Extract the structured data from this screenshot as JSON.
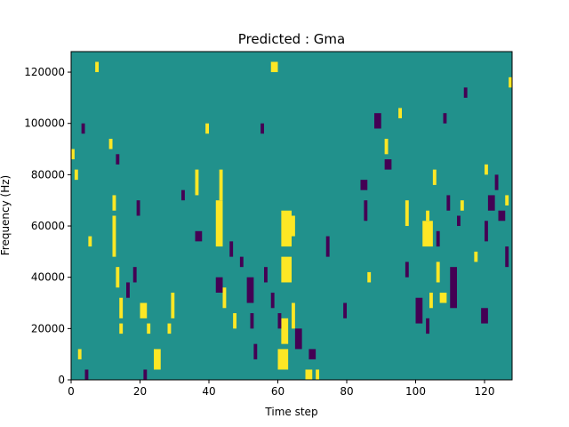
{
  "chart_data": {
    "type": "heatmap",
    "title": "Predicted : Gma",
    "xlabel": "Time step",
    "ylabel": "Frequency (Hz)",
    "xlim": [
      0,
      128
    ],
    "ylim": [
      0,
      128000
    ],
    "xticks": [
      0,
      20,
      40,
      60,
      80,
      100,
      120
    ],
    "yticks": [
      0,
      20000,
      40000,
      60000,
      80000,
      100000,
      120000
    ],
    "grid": false,
    "colormap": "viridis",
    "colors": {
      "background": "#21918c",
      "high": "#fde725",
      "low": "#440154"
    },
    "levels": {
      "background": 0,
      "high": 1,
      "low": -1
    },
    "cell_size": {
      "time_step": 1,
      "frequency_hz": 2000
    },
    "cells_high": [
      {
        "t": [
          0,
          1
        ],
        "f": [
          86000,
          90000
        ]
      },
      {
        "t": [
          1,
          2
        ],
        "f": [
          78000,
          82000
        ]
      },
      {
        "t": [
          2,
          3
        ],
        "f": [
          8000,
          12000
        ]
      },
      {
        "t": [
          5,
          6
        ],
        "f": [
          52000,
          56000
        ]
      },
      {
        "t": [
          7,
          8
        ],
        "f": [
          120000,
          124000
        ]
      },
      {
        "t": [
          11,
          12
        ],
        "f": [
          90000,
          94000
        ]
      },
      {
        "t": [
          12,
          13
        ],
        "f": [
          66000,
          72000
        ]
      },
      {
        "t": [
          12,
          13
        ],
        "f": [
          48000,
          64000
        ]
      },
      {
        "t": [
          13,
          14
        ],
        "f": [
          36000,
          44000
        ]
      },
      {
        "t": [
          14,
          15
        ],
        "f": [
          24000,
          32000
        ]
      },
      {
        "t": [
          14,
          15
        ],
        "f": [
          18000,
          22000
        ]
      },
      {
        "t": [
          20,
          22
        ],
        "f": [
          24000,
          30000
        ]
      },
      {
        "t": [
          22,
          23
        ],
        "f": [
          18000,
          22000
        ]
      },
      {
        "t": [
          24,
          26
        ],
        "f": [
          4000,
          12000
        ]
      },
      {
        "t": [
          28,
          29
        ],
        "f": [
          18000,
          22000
        ]
      },
      {
        "t": [
          29,
          30
        ],
        "f": [
          24000,
          34000
        ]
      },
      {
        "t": [
          36,
          37
        ],
        "f": [
          72000,
          82000
        ]
      },
      {
        "t": [
          39,
          40
        ],
        "f": [
          96000,
          100000
        ]
      },
      {
        "t": [
          42,
          44
        ],
        "f": [
          52000,
          70000
        ]
      },
      {
        "t": [
          43,
          44
        ],
        "f": [
          70000,
          82000
        ]
      },
      {
        "t": [
          44,
          45
        ],
        "f": [
          28000,
          36000
        ]
      },
      {
        "t": [
          47,
          48
        ],
        "f": [
          20000,
          26000
        ]
      },
      {
        "t": [
          58,
          60
        ],
        "f": [
          120000,
          124000
        ]
      },
      {
        "t": [
          60,
          63
        ],
        "f": [
          4000,
          12000
        ]
      },
      {
        "t": [
          61,
          63
        ],
        "f": [
          14000,
          24000
        ]
      },
      {
        "t": [
          61,
          64
        ],
        "f": [
          38000,
          48000
        ]
      },
      {
        "t": [
          61,
          64
        ],
        "f": [
          52000,
          66000
        ]
      },
      {
        "t": [
          63,
          65
        ],
        "f": [
          56000,
          64000
        ]
      },
      {
        "t": [
          64,
          65
        ],
        "f": [
          20000,
          30000
        ]
      },
      {
        "t": [
          68,
          70
        ],
        "f": [
          0,
          4000
        ]
      },
      {
        "t": [
          71,
          72
        ],
        "f": [
          0,
          4000
        ]
      },
      {
        "t": [
          86,
          87
        ],
        "f": [
          38000,
          42000
        ]
      },
      {
        "t": [
          91,
          92
        ],
        "f": [
          88000,
          94000
        ]
      },
      {
        "t": [
          95,
          96
        ],
        "f": [
          102000,
          106000
        ]
      },
      {
        "t": [
          97,
          98
        ],
        "f": [
          60000,
          70000
        ]
      },
      {
        "t": [
          102,
          105
        ],
        "f": [
          52000,
          62000
        ]
      },
      {
        "t": [
          103,
          104
        ],
        "f": [
          62000,
          66000
        ]
      },
      {
        "t": [
          104,
          105
        ],
        "f": [
          28000,
          34000
        ]
      },
      {
        "t": [
          105,
          106
        ],
        "f": [
          76000,
          82000
        ]
      },
      {
        "t": [
          106,
          107
        ],
        "f": [
          38000,
          46000
        ]
      },
      {
        "t": [
          107,
          109
        ],
        "f": [
          30000,
          34000
        ]
      },
      {
        "t": [
          113,
          114
        ],
        "f": [
          66000,
          70000
        ]
      },
      {
        "t": [
          117,
          118
        ],
        "f": [
          46000,
          50000
        ]
      },
      {
        "t": [
          120,
          121
        ],
        "f": [
          80000,
          84000
        ]
      },
      {
        "t": [
          126,
          127
        ],
        "f": [
          68000,
          72000
        ]
      },
      {
        "t": [
          127,
          128
        ],
        "f": [
          114000,
          118000
        ]
      }
    ],
    "cells_low": [
      {
        "t": [
          3,
          4
        ],
        "f": [
          96000,
          100000
        ]
      },
      {
        "t": [
          4,
          5
        ],
        "f": [
          0,
          4000
        ]
      },
      {
        "t": [
          13,
          14
        ],
        "f": [
          84000,
          88000
        ]
      },
      {
        "t": [
          16,
          17
        ],
        "f": [
          32000,
          38000
        ]
      },
      {
        "t": [
          18,
          19
        ],
        "f": [
          38000,
          44000
        ]
      },
      {
        "t": [
          19,
          20
        ],
        "f": [
          64000,
          70000
        ]
      },
      {
        "t": [
          21,
          22
        ],
        "f": [
          0,
          4000
        ]
      },
      {
        "t": [
          32,
          33
        ],
        "f": [
          70000,
          74000
        ]
      },
      {
        "t": [
          36,
          38
        ],
        "f": [
          54000,
          58000
        ]
      },
      {
        "t": [
          42,
          44
        ],
        "f": [
          34000,
          40000
        ]
      },
      {
        "t": [
          46,
          47
        ],
        "f": [
          48000,
          54000
        ]
      },
      {
        "t": [
          49,
          50
        ],
        "f": [
          44000,
          48000
        ]
      },
      {
        "t": [
          51,
          53
        ],
        "f": [
          30000,
          40000
        ]
      },
      {
        "t": [
          52,
          53
        ],
        "f": [
          20000,
          26000
        ]
      },
      {
        "t": [
          53,
          54
        ],
        "f": [
          8000,
          14000
        ]
      },
      {
        "t": [
          55,
          56
        ],
        "f": [
          96000,
          100000
        ]
      },
      {
        "t": [
          56,
          57
        ],
        "f": [
          38000,
          44000
        ]
      },
      {
        "t": [
          58,
          59
        ],
        "f": [
          28000,
          34000
        ]
      },
      {
        "t": [
          60,
          61
        ],
        "f": [
          20000,
          26000
        ]
      },
      {
        "t": [
          65,
          67
        ],
        "f": [
          12000,
          20000
        ]
      },
      {
        "t": [
          69,
          71
        ],
        "f": [
          8000,
          12000
        ]
      },
      {
        "t": [
          74,
          75
        ],
        "f": [
          48000,
          56000
        ]
      },
      {
        "t": [
          79,
          80
        ],
        "f": [
          24000,
          30000
        ]
      },
      {
        "t": [
          84,
          86
        ],
        "f": [
          74000,
          78000
        ]
      },
      {
        "t": [
          85,
          86
        ],
        "f": [
          62000,
          70000
        ]
      },
      {
        "t": [
          88,
          90
        ],
        "f": [
          98000,
          104000
        ]
      },
      {
        "t": [
          91,
          93
        ],
        "f": [
          82000,
          86000
        ]
      },
      {
        "t": [
          97,
          98
        ],
        "f": [
          40000,
          46000
        ]
      },
      {
        "t": [
          100,
          102
        ],
        "f": [
          22000,
          32000
        ]
      },
      {
        "t": [
          103,
          104
        ],
        "f": [
          18000,
          24000
        ]
      },
      {
        "t": [
          106,
          107
        ],
        "f": [
          52000,
          58000
        ]
      },
      {
        "t": [
          108,
          109
        ],
        "f": [
          100000,
          104000
        ]
      },
      {
        "t": [
          109,
          110
        ],
        "f": [
          66000,
          72000
        ]
      },
      {
        "t": [
          110,
          112
        ],
        "f": [
          28000,
          44000
        ]
      },
      {
        "t": [
          112,
          113
        ],
        "f": [
          60000,
          64000
        ]
      },
      {
        "t": [
          114,
          115
        ],
        "f": [
          110000,
          114000
        ]
      },
      {
        "t": [
          119,
          121
        ],
        "f": [
          22000,
          28000
        ]
      },
      {
        "t": [
          120,
          121
        ],
        "f": [
          54000,
          62000
        ]
      },
      {
        "t": [
          121,
          123
        ],
        "f": [
          66000,
          72000
        ]
      },
      {
        "t": [
          123,
          124
        ],
        "f": [
          74000,
          80000
        ]
      },
      {
        "t": [
          124,
          126
        ],
        "f": [
          62000,
          66000
        ]
      },
      {
        "t": [
          126,
          127
        ],
        "f": [
          44000,
          52000
        ]
      }
    ]
  }
}
